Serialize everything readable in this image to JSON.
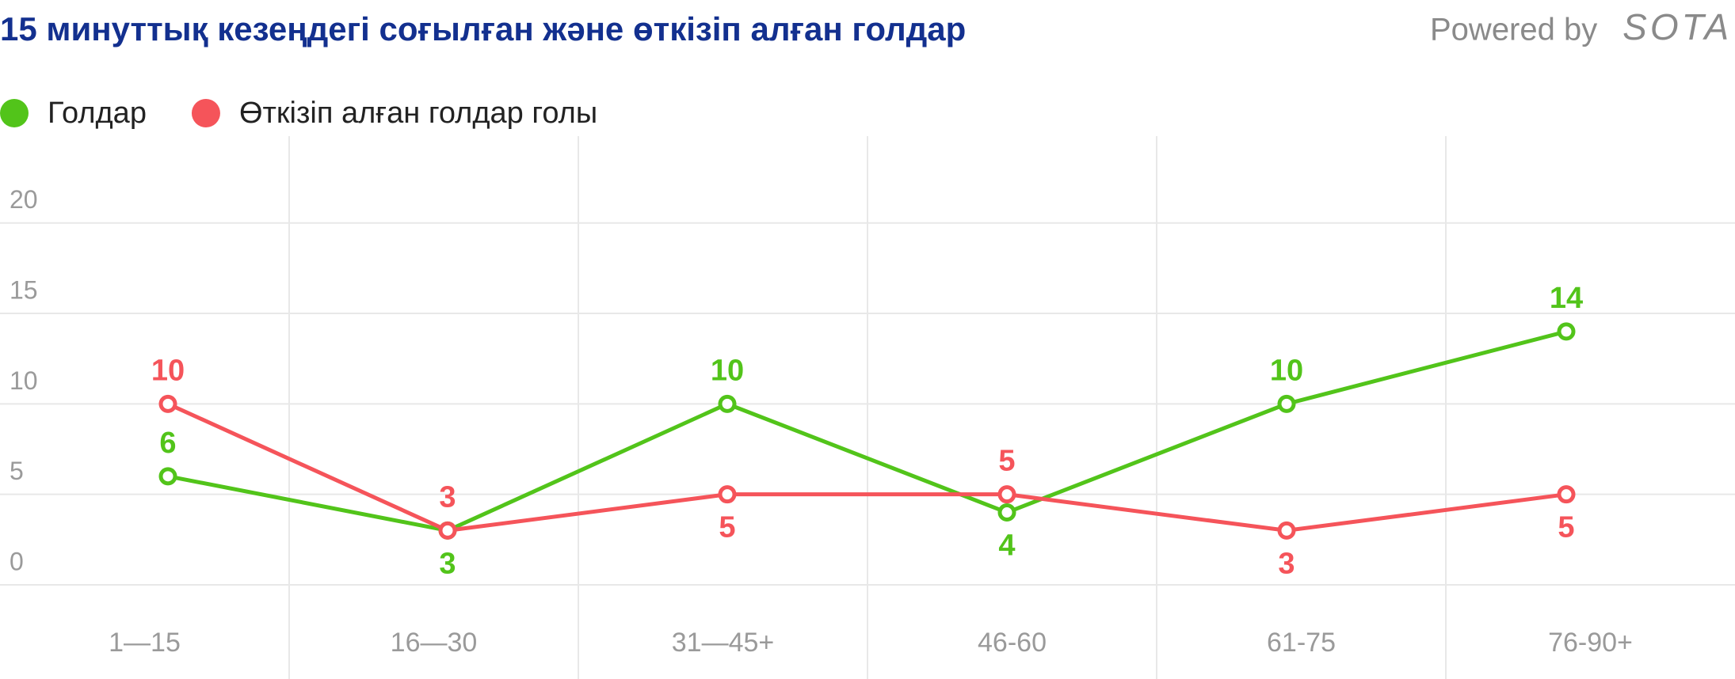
{
  "chart_data": {
    "type": "line",
    "title": "15 минуттық кезеңдегі соғылған және өткізіп алған голдар",
    "powered_by": "Powered by",
    "brand": "SOTA",
    "categories": [
      "1—15",
      "16—30",
      "31—45+",
      "46-60",
      "61-75",
      "76-90+"
    ],
    "series": [
      {
        "name": "Голдар",
        "color": "#52c41a",
        "values": [
          6,
          3,
          10,
          4,
          10,
          14
        ]
      },
      {
        "name": "Өткізіп алған голдар голы",
        "color": "#f5545a",
        "values": [
          10,
          3,
          5,
          5,
          3,
          5
        ]
      }
    ],
    "ylim": [
      0,
      24.8
    ],
    "yticks": [
      0,
      5,
      10,
      15,
      20
    ],
    "grid": true,
    "legend": "top-left"
  }
}
